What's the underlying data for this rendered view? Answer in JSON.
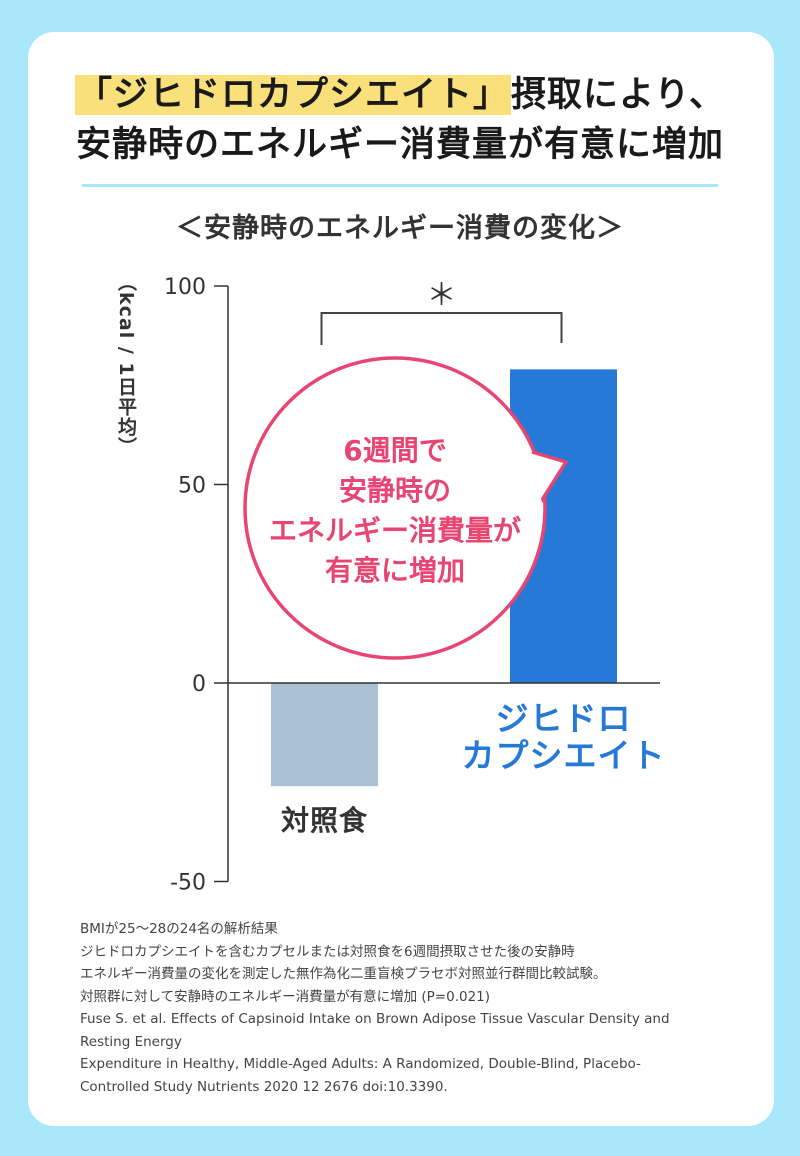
{
  "headline": {
    "highlight": "「ジヒドロカプシエイト」",
    "line1_rest": "摂取により、",
    "line2": "安静時のエネルギー消費量が有意に増加"
  },
  "chart_data": {
    "type": "bar",
    "title": "＜安静時のエネルギー消費の変化＞",
    "ylabel": "（kcal / 1日平均）",
    "xlabel": "",
    "yticks": [
      100,
      50,
      0,
      -50
    ],
    "ylim": [
      -50,
      100
    ],
    "categories": [
      "対照食",
      "ジヒドロカプシエイト"
    ],
    "category_lines": [
      [
        "対照食"
      ],
      [
        "ジヒドロ",
        "カプシエイト"
      ]
    ],
    "values": [
      -26,
      79
    ],
    "colors": [
      "#a9c1d3",
      "#2679d6"
    ],
    "label_colors": [
      "#333333",
      "#2679d6"
    ],
    "significance": "＊",
    "callout": {
      "lines": [
        "6週間で",
        "安静時の",
        "エネルギー消費量が",
        "有意に増加"
      ],
      "color": "#e84572"
    }
  },
  "notes": [
    "BMIが25〜28の24名の解析結果",
    "ジヒドロカプシエイトを含むカプセルまたは対照食を6週間摂取させた後の安静時",
    "エネルギー消費量の変化を測定した無作為化二重盲検プラセボ対照並行群間比較試験。",
    "対照群に対して安静時のエネルギー消費量が有意に増加 (P=0.021)",
    "Fuse S. et al. Effects of Capsinoid Intake on Brown Adipose Tissue Vascular Density and",
    "Resting Energy",
    "Expenditure in Healthy, Middle-Aged Adults: A Randomized, Double-Blind, Placebo-",
    "Controlled Study Nutrients 2020 12 2676 doi:10.3390."
  ]
}
